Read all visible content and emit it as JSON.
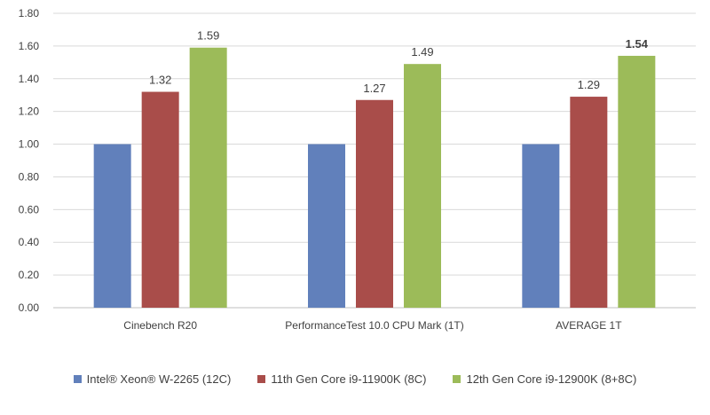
{
  "chart_data": {
    "type": "bar",
    "categories": [
      "Cinebench R20",
      "PerformanceTest 10.0 CPU Mark (1T)",
      "AVERAGE 1T"
    ],
    "series": [
      {
        "name": "Intel® Xeon® W-2265 (12C)",
        "values": [
          1.0,
          1.0,
          1.0
        ],
        "color": "#6180BB",
        "labels": [
          "",
          "",
          ""
        ]
      },
      {
        "name": "11th Gen Core i9-11900K (8C)",
        "values": [
          1.32,
          1.27,
          1.29
        ],
        "color": "#A94D4A",
        "labels": [
          "1.32",
          "1.27",
          "1.29"
        ]
      },
      {
        "name": "12th Gen Core i9-12900K (8+8C)",
        "values": [
          1.59,
          1.49,
          1.54
        ],
        "color": "#9CBB59",
        "labels": [
          "1.59",
          "1.49",
          "1.54"
        ]
      }
    ],
    "bold_labels": [
      "1.54"
    ],
    "ylim": [
      0,
      1.8
    ],
    "yticks": [
      "0.00",
      "0.20",
      "0.40",
      "0.60",
      "0.80",
      "1.00",
      "1.20",
      "1.40",
      "1.60",
      "1.80"
    ],
    "grid": true,
    "legend_position": "bottom",
    "title": "",
    "xlabel": "",
    "ylabel": ""
  }
}
